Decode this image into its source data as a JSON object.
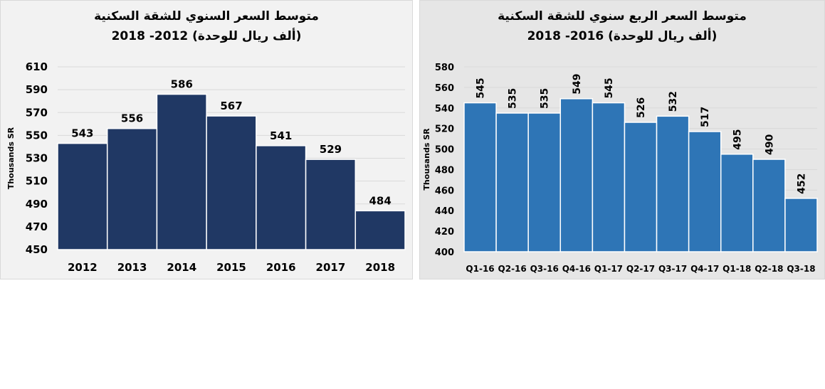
{
  "chart_data": [
    {
      "type": "bar",
      "title_line1": "متوسط السعر السنوي للشقة السكنية",
      "title_line2": "(ألف ريال للوحدة)  2012- 2018",
      "ylabel": "Thousands SR",
      "categories": [
        "2012",
        "2013",
        "2014",
        "2015",
        "2016",
        "2017",
        "2018"
      ],
      "values": [
        543,
        556,
        586,
        567,
        541,
        529,
        484
      ],
      "ylim": [
        450,
        610
      ],
      "yticks": [
        450,
        470,
        490,
        510,
        530,
        550,
        570,
        590,
        610
      ],
      "grid": true,
      "bar_color": "#203864",
      "label_rotation": "horizontal"
    },
    {
      "type": "bar",
      "title_line1": "متوسط السعر الربع سنوي للشقة السكنية",
      "title_line2": "(ألف ريال للوحدة) 2016- 2018",
      "ylabel": "Thousands SR",
      "categories": [
        "Q1-16",
        "Q2-16",
        "Q3-16",
        "Q4-16",
        "Q1-17",
        "Q2-17",
        "Q3-17",
        "Q4-17",
        "Q1-18",
        "Q2-18",
        "Q3-18"
      ],
      "values": [
        545,
        535,
        535,
        549,
        545,
        526,
        532,
        517,
        495,
        490,
        452
      ],
      "ylim": [
        400,
        580
      ],
      "yticks": [
        400,
        420,
        440,
        460,
        480,
        500,
        520,
        540,
        560,
        580
      ],
      "grid": true,
      "bar_color": "#2e75b6",
      "label_rotation": "vertical"
    }
  ]
}
